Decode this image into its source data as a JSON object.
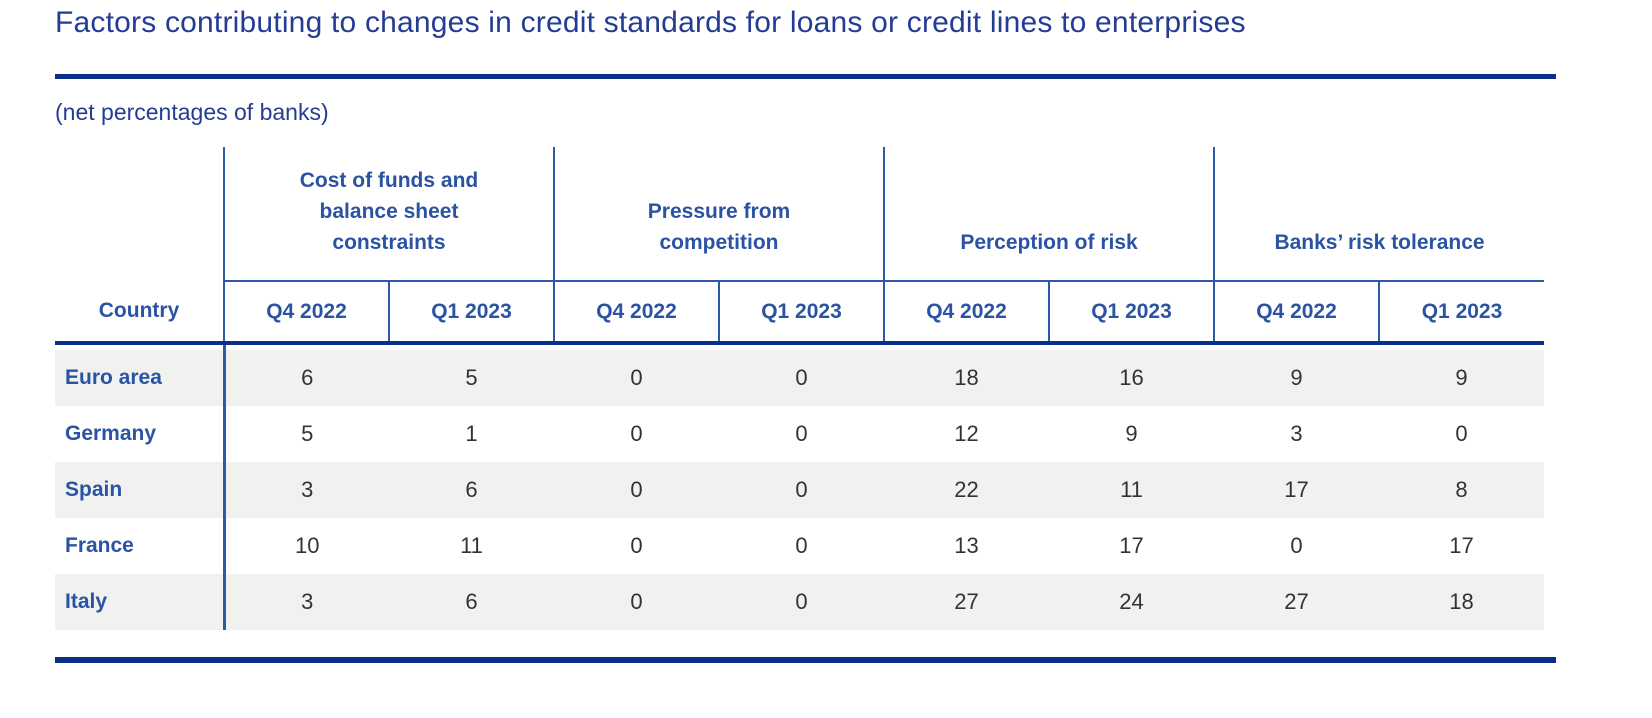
{
  "title": "Factors contributing to changes in credit standards for loans or credit lines to enterprises",
  "subtitle": "(net percentages of banks)",
  "table": {
    "corner_label": "Country",
    "groups": [
      {
        "label": "Cost of funds and balance sheet constraints"
      },
      {
        "label": "Pressure from competition"
      },
      {
        "label": "Perception of risk"
      },
      {
        "label": "Banks’ risk tolerance"
      }
    ],
    "quarters": [
      "Q4 2022",
      "Q1 2023",
      "Q4 2022",
      "Q1 2023",
      "Q4 2022",
      "Q1 2023",
      "Q4 2022",
      "Q1 2023"
    ],
    "rows": [
      {
        "country": "Euro area",
        "values": [
          6,
          5,
          0,
          0,
          18,
          16,
          9,
          9
        ]
      },
      {
        "country": "Germany",
        "values": [
          5,
          1,
          0,
          0,
          12,
          9,
          3,
          0
        ]
      },
      {
        "country": "Spain",
        "values": [
          3,
          6,
          0,
          0,
          22,
          11,
          17,
          8
        ]
      },
      {
        "country": "France",
        "values": [
          10,
          11,
          0,
          0,
          13,
          17,
          0,
          17
        ]
      },
      {
        "country": "Italy",
        "values": [
          3,
          6,
          0,
          0,
          27,
          24,
          27,
          18
        ]
      }
    ]
  },
  "colors": {
    "accent_navy": "#0a2f86",
    "table_border_blue": "#2c5aa7",
    "table_text_blue": "#2a53a4",
    "title_blue": "#243c94",
    "row_stripe": "#f1f1ef"
  },
  "chart_data": {
    "type": "table",
    "title": "Factors contributing to changes in credit standards for loans or credit lines to enterprises",
    "subtitle": "(net percentages of banks)",
    "column_groups": [
      {
        "name": "Cost of funds and balance sheet constraints",
        "columns": [
          "Q4 2022",
          "Q1 2023"
        ]
      },
      {
        "name": "Pressure from competition",
        "columns": [
          "Q4 2022",
          "Q1 2023"
        ]
      },
      {
        "name": "Perception of risk",
        "columns": [
          "Q4 2022",
          "Q1 2023"
        ]
      },
      {
        "name": "Banks’ risk tolerance",
        "columns": [
          "Q4 2022",
          "Q1 2023"
        ]
      }
    ],
    "row_header": "Country",
    "rows": [
      {
        "country": "Euro area",
        "values": [
          6,
          5,
          0,
          0,
          18,
          16,
          9,
          9
        ]
      },
      {
        "country": "Germany",
        "values": [
          5,
          1,
          0,
          0,
          12,
          9,
          3,
          0
        ]
      },
      {
        "country": "Spain",
        "values": [
          3,
          6,
          0,
          0,
          22,
          11,
          17,
          8
        ]
      },
      {
        "country": "France",
        "values": [
          10,
          11,
          0,
          0,
          13,
          17,
          0,
          17
        ]
      },
      {
        "country": "Italy",
        "values": [
          3,
          6,
          0,
          0,
          27,
          24,
          27,
          18
        ]
      }
    ]
  }
}
